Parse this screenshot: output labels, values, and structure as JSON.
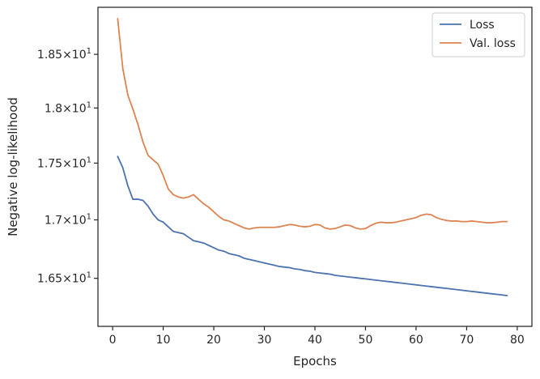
{
  "chart_data": {
    "type": "line",
    "title": "",
    "xlabel": "Epochs",
    "ylabel": "Negative log-likelihood",
    "xlim": [
      -2.9,
      82.9
    ],
    "ylim": [
      16.1,
      18.95
    ],
    "y_scale": "log",
    "grid": false,
    "legend_position": "top-right",
    "x_ticks": [
      0,
      10,
      20,
      30,
      40,
      50,
      60,
      70,
      80
    ],
    "y_ticks": [
      {
        "value": 16.5,
        "mantissa": "1.65",
        "base": "10",
        "exp": "1"
      },
      {
        "value": 17.0,
        "mantissa": "1.7",
        "base": "10",
        "exp": "1"
      },
      {
        "value": 17.5,
        "mantissa": "1.75",
        "base": "10",
        "exp": "1"
      },
      {
        "value": 18.0,
        "mantissa": "1.8",
        "base": "10",
        "exp": "1"
      },
      {
        "value": 18.5,
        "mantissa": "1.85",
        "base": "10",
        "exp": "1"
      }
    ],
    "series": [
      {
        "name": "Loss",
        "color": "#4c72b0",
        "x": [
          1,
          2,
          3,
          4,
          5,
          6,
          7,
          8,
          9,
          10,
          11,
          12,
          13,
          14,
          15,
          16,
          17,
          18,
          19,
          20,
          21,
          22,
          23,
          24,
          25,
          26,
          27,
          28,
          29,
          30,
          31,
          32,
          33,
          34,
          35,
          36,
          37,
          38,
          39,
          40,
          41,
          42,
          43,
          44,
          45,
          46,
          47,
          48,
          49,
          50,
          51,
          52,
          53,
          54,
          55,
          56,
          57,
          58,
          59,
          60,
          61,
          62,
          63,
          64,
          65,
          66,
          67,
          68,
          69,
          70,
          71,
          72,
          73,
          74,
          75,
          76,
          77,
          78
        ],
        "y": [
          17.56,
          17.46,
          17.3,
          17.18,
          17.18,
          17.17,
          17.12,
          17.05,
          17.0,
          16.98,
          16.94,
          16.9,
          16.89,
          16.88,
          16.85,
          16.82,
          16.81,
          16.8,
          16.78,
          16.76,
          16.74,
          16.73,
          16.71,
          16.7,
          16.69,
          16.67,
          16.66,
          16.65,
          16.64,
          16.63,
          16.62,
          16.61,
          16.6,
          16.595,
          16.59,
          16.58,
          16.575,
          16.565,
          16.56,
          16.55,
          16.545,
          16.54,
          16.535,
          16.525,
          16.52,
          16.515,
          16.51,
          16.505,
          16.5,
          16.495,
          16.49,
          16.485,
          16.48,
          16.475,
          16.47,
          16.465,
          16.46,
          16.455,
          16.45,
          16.445,
          16.44,
          16.435,
          16.43,
          16.425,
          16.42,
          16.415,
          16.41,
          16.405,
          16.4,
          16.395,
          16.39,
          16.385,
          16.38,
          16.375,
          16.37,
          16.365,
          16.36,
          16.355
        ]
      },
      {
        "name": "Val. loss",
        "color": "#dd8452",
        "x": [
          1,
          2,
          3,
          4,
          5,
          6,
          7,
          8,
          9,
          10,
          11,
          12,
          13,
          14,
          15,
          16,
          17,
          18,
          19,
          20,
          21,
          22,
          23,
          24,
          25,
          26,
          27,
          28,
          29,
          30,
          31,
          32,
          33,
          34,
          35,
          36,
          37,
          38,
          39,
          40,
          41,
          42,
          43,
          44,
          45,
          46,
          47,
          48,
          49,
          50,
          51,
          52,
          53,
          54,
          55,
          56,
          57,
          58,
          59,
          60,
          61,
          62,
          63,
          64,
          65,
          66,
          67,
          68,
          69,
          70,
          71,
          72,
          73,
          74,
          75,
          76,
          77,
          78
        ],
        "y": [
          18.84,
          18.37,
          18.12,
          17.99,
          17.85,
          17.69,
          17.57,
          17.53,
          17.49,
          17.39,
          17.27,
          17.22,
          17.2,
          17.19,
          17.2,
          17.22,
          17.18,
          17.14,
          17.11,
          17.07,
          17.03,
          17.0,
          16.99,
          16.97,
          16.95,
          16.93,
          16.92,
          16.93,
          16.935,
          16.935,
          16.935,
          16.935,
          16.94,
          16.95,
          16.96,
          16.955,
          16.945,
          16.94,
          16.945,
          16.96,
          16.955,
          16.93,
          16.92,
          16.925,
          16.94,
          16.955,
          16.95,
          16.93,
          16.92,
          16.925,
          16.95,
          16.97,
          16.98,
          16.975,
          16.975,
          16.98,
          16.99,
          17.0,
          17.01,
          17.02,
          17.04,
          17.05,
          17.045,
          17.02,
          17.005,
          16.995,
          16.99,
          16.99,
          16.985,
          16.985,
          16.99,
          16.985,
          16.98,
          16.975,
          16.975,
          16.98,
          16.985,
          16.985
        ]
      }
    ]
  }
}
